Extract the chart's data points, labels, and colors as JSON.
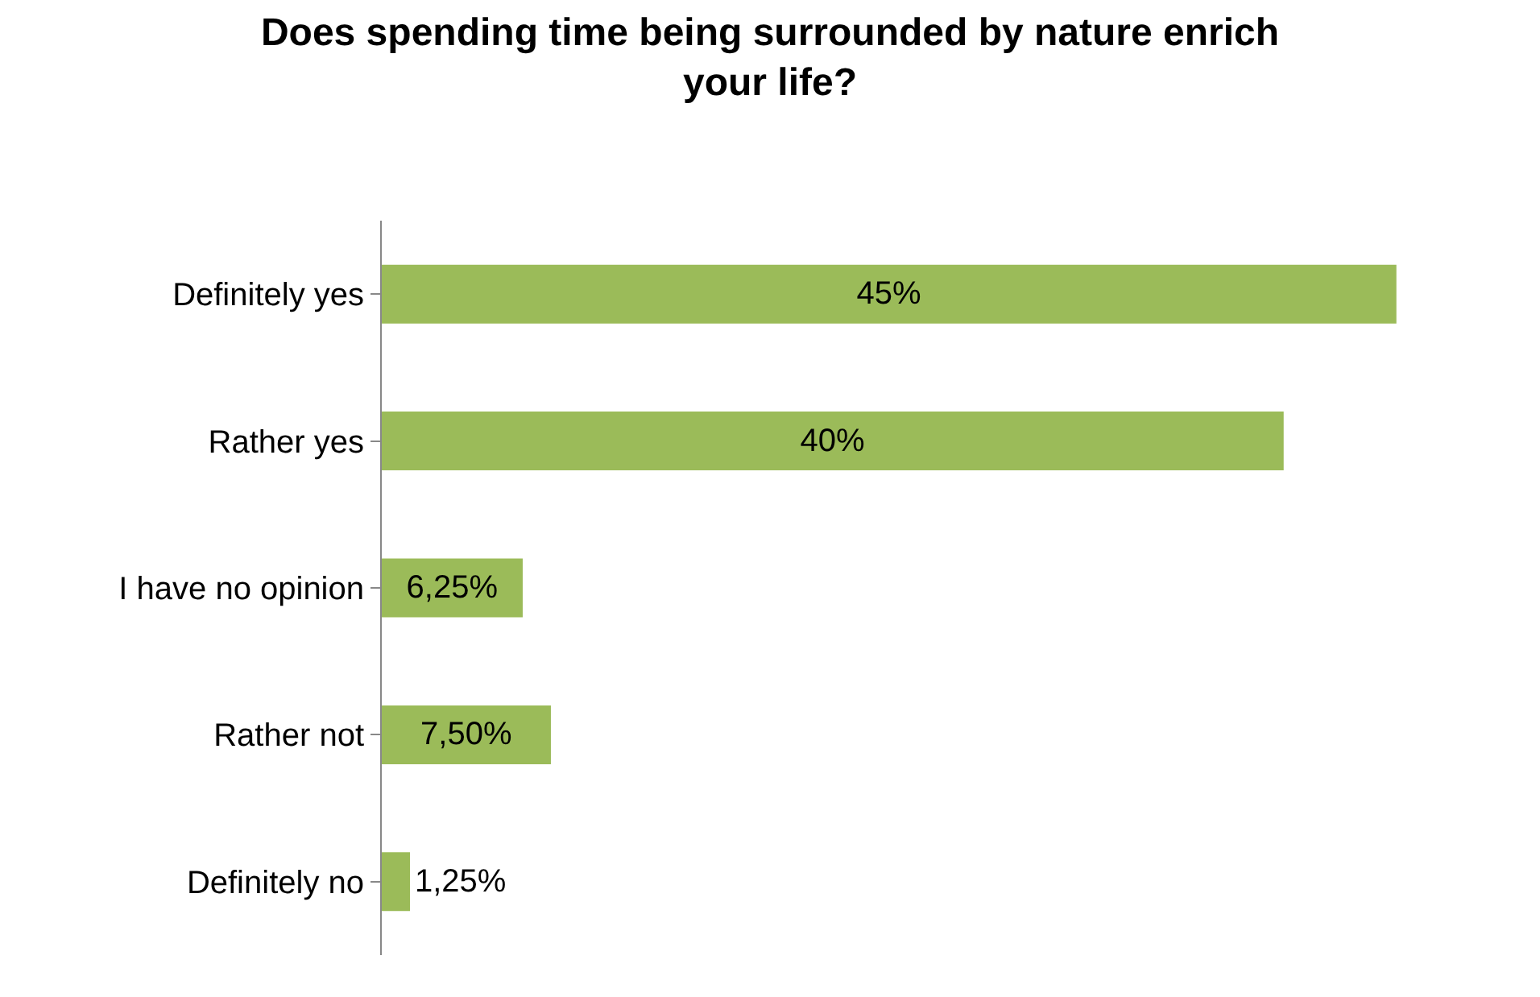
{
  "chart_data": {
    "type": "bar",
    "orientation": "horizontal",
    "title": "Does spending time being surrounded by nature enrich your life?",
    "categories": [
      "Definitely yes",
      "Rather yes",
      "I have no opinion",
      "Rather not",
      "Definitely no"
    ],
    "values": [
      45,
      40,
      6.25,
      7.5,
      1.25
    ],
    "value_labels": [
      "45%",
      "40%",
      "6,25%",
      "7,50%",
      "1,25%"
    ],
    "color": "#9bbb59",
    "grid": false,
    "legend": false,
    "tick_labels": "y"
  }
}
